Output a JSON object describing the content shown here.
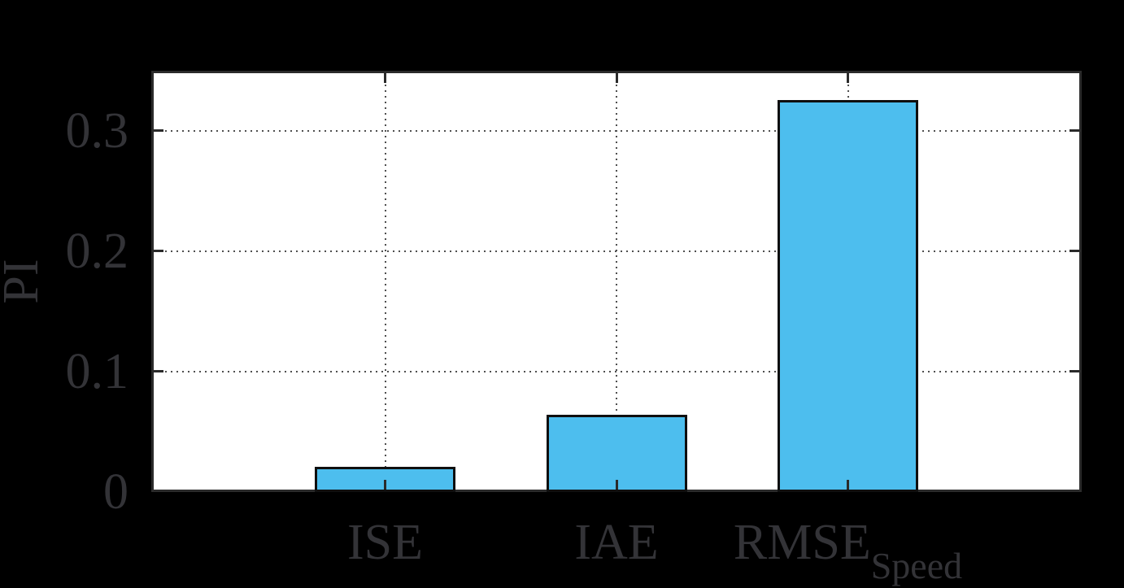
{
  "figure": {
    "background": "#000000",
    "plot_background": "#ffffff"
  },
  "chart_data": {
    "type": "bar",
    "title": "",
    "xlabel": "",
    "ylabel": "PI",
    "categories": [
      {
        "label": "ISE",
        "subscript": ""
      },
      {
        "label": "IAE",
        "subscript": ""
      },
      {
        "label": "RMSE",
        "subscript": "Speed"
      }
    ],
    "values": [
      0.021,
      0.064,
      0.326
    ],
    "ytick_values": [
      0,
      0.1,
      0.2,
      0.3
    ],
    "ytick_labels": [
      "0",
      "0.1",
      "0.2",
      "0.3"
    ],
    "ylim": [
      0,
      0.35
    ],
    "grid": "dotted",
    "legend": "none",
    "bar_color": "#4dbeee",
    "bar_edge_color": "#0f0f0f",
    "axis_color": "#2b2b2b",
    "grid_color": "#4f4f4f",
    "text_color": "#333337"
  }
}
